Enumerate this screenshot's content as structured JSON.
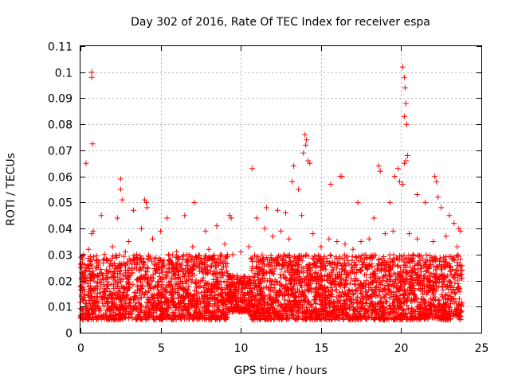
{
  "chart_data": {
    "type": "scatter",
    "title": "Day 302 of 2016, Rate Of TEC Index for receiver espa",
    "xlabel": "GPS time / hours",
    "ylabel": "ROTI / TECUs",
    "xlim": [
      0,
      25
    ],
    "ylim": [
      0,
      0.11
    ],
    "xticks": [
      0,
      5,
      10,
      15,
      20,
      25
    ],
    "xtick_labels": [
      "0",
      "5",
      "10",
      "15",
      "20",
      "25"
    ],
    "yticks": [
      0,
      0.01,
      0.02,
      0.03,
      0.04,
      0.05,
      0.06,
      0.07,
      0.08,
      0.09,
      0.1,
      0.11
    ],
    "ytick_labels": [
      "0",
      "0.01",
      "0.02",
      "0.03",
      "0.04",
      "0.05",
      "0.06",
      "0.07",
      "0.08",
      "0.09",
      "0.1",
      "0.11"
    ],
    "grid": true,
    "marker": "+",
    "color": "#ff0000",
    "series": [
      {
        "name": "ROTI",
        "x": [
          0.7,
          0.7,
          0.75,
          0.35,
          0.8,
          0.7,
          1.3,
          2.5,
          2.5,
          2.6,
          2.3,
          3.3,
          4.0,
          4.1,
          4.15,
          3.8,
          5.4,
          5.0,
          6.5,
          7.1,
          7.8,
          8.5,
          9.3,
          9.4,
          10.7,
          11.0,
          11.6,
          12.3,
          12.8,
          13.2,
          13.3,
          13.6,
          13.9,
          14.0,
          14.1,
          14.05,
          14.2,
          14.3,
          13.8,
          15.6,
          16.2,
          16.3,
          17.3,
          18.3,
          18.6,
          18.7,
          19.3,
          19.6,
          19.8,
          19.9,
          20.1,
          20.2,
          20.25,
          20.3,
          20.2,
          20.35,
          20.4,
          20.3,
          20.2,
          20.1,
          21.0,
          21.5,
          22.1,
          22.2,
          22.3,
          22.5,
          23.0,
          23.3,
          23.6,
          23.7,
          0.2,
          0.5,
          1.0,
          1.5,
          2.0,
          2.8,
          3.0,
          3.5,
          4.5,
          5.0,
          5.5,
          6.0,
          7.0,
          8.0,
          9.0,
          9.5,
          10.0,
          10.5,
          11.5,
          12.0,
          12.5,
          13.0,
          14.5,
          15.0,
          15.5,
          16.0,
          16.5,
          17.0,
          17.5,
          18.0,
          19.0,
          19.5,
          20.5,
          21.0,
          22.0,
          22.8,
          23.5
        ],
        "y": [
          0.1,
          0.098,
          0.0725,
          0.065,
          0.039,
          0.038,
          0.045,
          0.059,
          0.055,
          0.051,
          0.044,
          0.047,
          0.051,
          0.05,
          0.048,
          0.04,
          0.044,
          0.039,
          0.045,
          0.05,
          0.039,
          0.041,
          0.045,
          0.044,
          0.063,
          0.044,
          0.048,
          0.047,
          0.046,
          0.058,
          0.064,
          0.055,
          0.069,
          0.076,
          0.074,
          0.072,
          0.066,
          0.065,
          0.045,
          0.057,
          0.06,
          0.06,
          0.05,
          0.044,
          0.064,
          0.062,
          0.05,
          0.06,
          0.063,
          0.058,
          0.102,
          0.098,
          0.094,
          0.088,
          0.083,
          0.08,
          0.068,
          0.066,
          0.065,
          0.057,
          0.053,
          0.05,
          0.06,
          0.058,
          0.052,
          0.048,
          0.045,
          0.042,
          0.04,
          0.039,
          0.03,
          0.032,
          0.028,
          0.03,
          0.033,
          0.031,
          0.035,
          0.03,
          0.036,
          0.028,
          0.03,
          0.031,
          0.033,
          0.032,
          0.034,
          0.03,
          0.031,
          0.033,
          0.04,
          0.037,
          0.039,
          0.036,
          0.038,
          0.033,
          0.036,
          0.035,
          0.034,
          0.032,
          0.035,
          0.036,
          0.038,
          0.039,
          0.038,
          0.036,
          0.035,
          0.037,
          0.033
        ]
      }
    ],
    "dense_band": {
      "x_range": [
        0,
        23.8
      ],
      "y_min_typical": 0.005,
      "y_max_typical": 0.03,
      "quiet_start": 9.2,
      "quiet_end": 10.6
    }
  }
}
